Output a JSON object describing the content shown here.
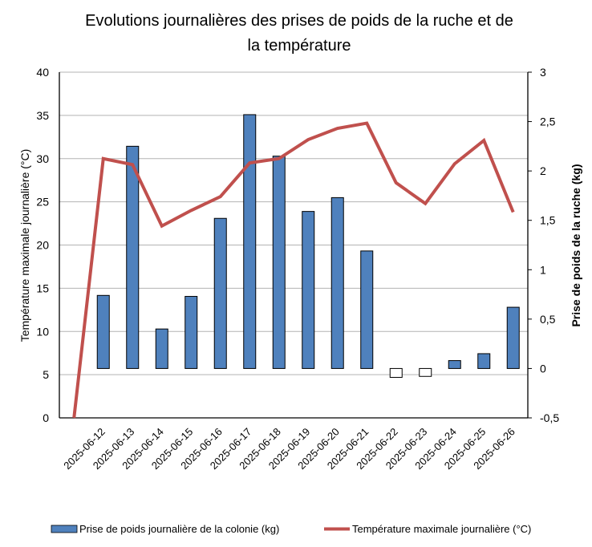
{
  "chart_data": {
    "type": "bar+line",
    "title": "Evolutions journalières des prises de poids de la ruche et de la température",
    "title_lines": [
      "Evolutions journalières des prises de poids de la ruche et de",
      "la température"
    ],
    "categories": [
      "",
      "2025-06-12",
      "2025-06-13",
      "2025-06-14",
      "2025-06-15",
      "2025-06-16",
      "2025-06-17",
      "2025-06-18",
      "2025-06-19",
      "2025-06-20",
      "2025-06-21",
      "2025-06-22",
      "2025-06-23",
      "2025-06-24",
      "2025-06-25",
      "2025-06-26"
    ],
    "series": [
      {
        "name": "Prise de poids journalière de la colonie (kg)",
        "type": "bar",
        "axis": "right",
        "color": "#4F81BD",
        "negative_color": "#FFFFFF",
        "values": [
          null,
          0.74,
          2.25,
          0.4,
          0.73,
          1.52,
          2.57,
          2.15,
          1.59,
          1.73,
          1.19,
          -0.09,
          -0.08,
          0.08,
          0.15,
          0.62
        ]
      },
      {
        "name": "Température maximale journalière (°C)",
        "type": "line",
        "axis": "left",
        "color": "#C0504D",
        "values": [
          0,
          30.0,
          29.3,
          22.2,
          24.0,
          25.6,
          29.5,
          30.0,
          32.2,
          33.5,
          34.1,
          27.2,
          24.8,
          29.4,
          32.1,
          23.8
        ]
      }
    ],
    "y_left": {
      "label": "Température maximale journalière (°C)",
      "lim": [
        0,
        40
      ],
      "ticks": [
        0,
        5,
        10,
        15,
        20,
        25,
        30,
        35,
        40
      ],
      "tick_labels": [
        "0",
        "5",
        "10",
        "15",
        "20",
        "25",
        "30",
        "35",
        "40"
      ]
    },
    "y_right": {
      "label": "Prise de poids de la ruche (kg)",
      "lim": [
        -0.5,
        3
      ],
      "ticks": [
        -0.5,
        0,
        0.5,
        1,
        1.5,
        2,
        2.5,
        3
      ],
      "tick_labels": [
        "-0,5",
        "0",
        "0,5",
        "1",
        "1,5",
        "2",
        "2,5",
        "3"
      ]
    },
    "xlabel": "",
    "grid": true,
    "legend_position": "bottom"
  }
}
